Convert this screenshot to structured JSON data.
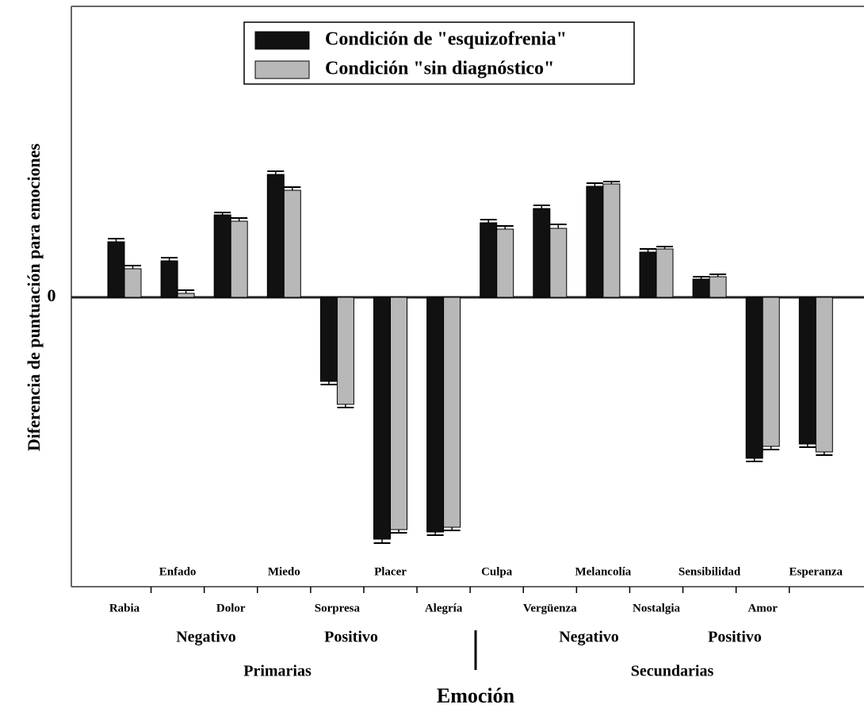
{
  "chart_data": {
    "type": "bar",
    "xlabel": "Emoción",
    "ylabel": "Diferencia de puntuación para emociones",
    "categories": [
      "Rabia",
      "Enfado",
      "Dolor",
      "Miedo",
      "Sorpresa",
      "Placer",
      "Alegría",
      "Culpa",
      "Vergüenza",
      "Melancolía",
      "Nostalgia",
      "Sensibilidad",
      "Amor",
      "Esperanza"
    ],
    "series": [
      {
        "name": "Condición de \"esquizofrenia\"",
        "color": "#111111",
        "values": [
          0.7,
          0.46,
          1.04,
          1.55,
          -1.06,
          -3.05,
          -2.96,
          0.94,
          1.12,
          1.4,
          0.57,
          0.23,
          -2.03,
          -1.85
        ],
        "errors": [
          0.04,
          0.04,
          0.03,
          0.04,
          0.04,
          0.05,
          0.04,
          0.04,
          0.04,
          0.04,
          0.04,
          0.03,
          0.04,
          0.04
        ]
      },
      {
        "name": "Condición \"sin diagnóstico\"",
        "color": "#b8b8b8",
        "values": [
          0.36,
          0.05,
          0.96,
          1.35,
          -1.35,
          -2.93,
          -2.9,
          0.86,
          0.87,
          1.43,
          0.61,
          0.26,
          -1.88,
          -1.95
        ],
        "errors": [
          0.04,
          0.04,
          0.04,
          0.04,
          0.04,
          0.04,
          0.04,
          0.04,
          0.05,
          0.03,
          0.03,
          0.03,
          0.04,
          0.04
        ]
      }
    ],
    "subgroups": [
      "Negativo",
      "Positivo",
      "Negativo",
      "Positivo"
    ],
    "groups": [
      "Primarias",
      "Secundarias"
    ],
    "ylim": [
      -3.65,
      3.67
    ],
    "yticks": [
      0
    ],
    "legend": "top"
  }
}
